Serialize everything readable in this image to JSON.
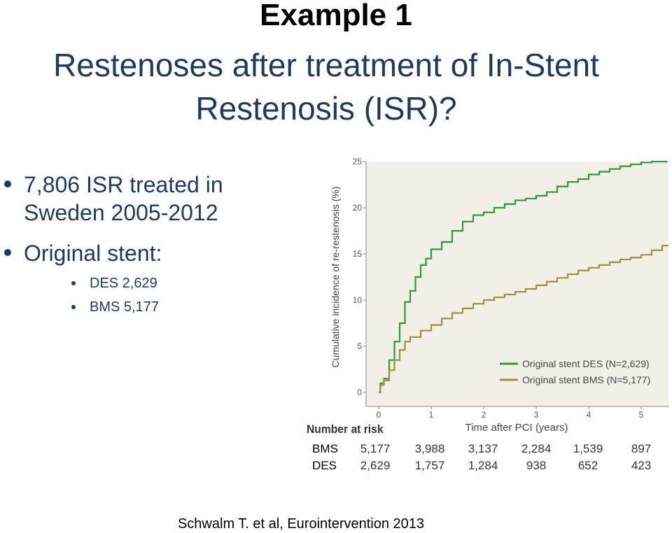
{
  "slide": {
    "title": "Example 1",
    "subtitle_line1": "Restenoses after treatment of In-Stent",
    "subtitle_line2": "Restenosis (ISR)?",
    "bullets": {
      "b1_line1": "7,806 ISR treated in",
      "b1_line2": "Sweden 2005-2012",
      "b2": "Original stent:",
      "b2_sub1": "DES 2,629",
      "b2_sub2": "BMS 5,177"
    },
    "citation": "Schwalm T. et al, Eurointervention 2013"
  },
  "colors": {
    "des": "#2a9a3a",
    "bms": "#a09040",
    "plot_bg": "#f2f0e6",
    "text_blue": "#1f3a5f"
  },
  "chart_data": {
    "type": "line",
    "xlabel": "Time after PCI (years)",
    "ylabel": "Cumulative incidence of re-restenosis (%)",
    "xlim": [
      0,
      5.55
    ],
    "ylim": [
      0,
      25
    ],
    "xticks": [
      "0",
      "1",
      "2",
      "3",
      "4",
      "5"
    ],
    "yticks": [
      "0",
      "5",
      "10",
      "15",
      "20",
      "25"
    ],
    "legend_position": "bottom-right",
    "series": [
      {
        "name": "Original stent DES (N=2,629)",
        "color": "#2a9a3a",
        "points": [
          [
            0,
            0
          ],
          [
            0.03,
            1
          ],
          [
            0.1,
            1.5
          ],
          [
            0.2,
            3.5
          ],
          [
            0.3,
            5.5
          ],
          [
            0.4,
            7.5
          ],
          [
            0.5,
            9.8
          ],
          [
            0.6,
            11
          ],
          [
            0.7,
            12.5
          ],
          [
            0.8,
            13.8
          ],
          [
            0.9,
            14.5
          ],
          [
            1.0,
            15.5
          ],
          [
            1.2,
            16.3
          ],
          [
            1.4,
            17.5
          ],
          [
            1.6,
            18.5
          ],
          [
            1.8,
            19.2
          ],
          [
            2.0,
            19.5
          ],
          [
            2.2,
            20.0
          ],
          [
            2.4,
            20.4
          ],
          [
            2.6,
            20.8
          ],
          [
            2.8,
            21.0
          ],
          [
            3.0,
            21.3
          ],
          [
            3.2,
            21.7
          ],
          [
            3.4,
            22.3
          ],
          [
            3.6,
            22.8
          ],
          [
            3.8,
            23.1
          ],
          [
            4.0,
            23.6
          ],
          [
            4.2,
            23.9
          ],
          [
            4.4,
            24.2
          ],
          [
            4.6,
            24.5
          ],
          [
            4.8,
            24.7
          ],
          [
            5.0,
            24.9
          ],
          [
            5.2,
            25.0
          ],
          [
            5.5,
            25.0
          ]
        ]
      },
      {
        "name": "Original stent BMS (N=5,177)",
        "color": "#a09040",
        "points": [
          [
            0,
            0
          ],
          [
            0.03,
            0.8
          ],
          [
            0.1,
            1.3
          ],
          [
            0.2,
            2.4
          ],
          [
            0.3,
            3.5
          ],
          [
            0.4,
            4.6
          ],
          [
            0.5,
            5.5
          ],
          [
            0.6,
            6.0
          ],
          [
            0.8,
            6.7
          ],
          [
            1.0,
            7.3
          ],
          [
            1.2,
            8.0
          ],
          [
            1.4,
            8.6
          ],
          [
            1.6,
            9.1
          ],
          [
            1.8,
            9.6
          ],
          [
            2.0,
            10.0
          ],
          [
            2.2,
            10.3
          ],
          [
            2.4,
            10.6
          ],
          [
            2.6,
            10.9
          ],
          [
            2.8,
            11.2
          ],
          [
            3.0,
            11.6
          ],
          [
            3.2,
            12.0
          ],
          [
            3.4,
            12.4
          ],
          [
            3.6,
            12.8
          ],
          [
            3.8,
            13.2
          ],
          [
            4.0,
            13.5
          ],
          [
            4.2,
            13.8
          ],
          [
            4.4,
            14.1
          ],
          [
            4.6,
            14.4
          ],
          [
            4.8,
            14.6
          ],
          [
            5.0,
            14.9
          ],
          [
            5.2,
            15.4
          ],
          [
            5.4,
            15.9
          ],
          [
            5.5,
            16.0
          ]
        ]
      }
    ],
    "risk_table": {
      "title": "Number at risk",
      "rows": [
        {
          "label": "BMS",
          "values": [
            "5,177",
            "3,988",
            "3,137",
            "2,284",
            "1,539",
            "897"
          ]
        },
        {
          "label": "DES",
          "values": [
            "2,629",
            "1,757",
            "1,284",
            "938",
            "652",
            "423"
          ]
        }
      ]
    }
  }
}
